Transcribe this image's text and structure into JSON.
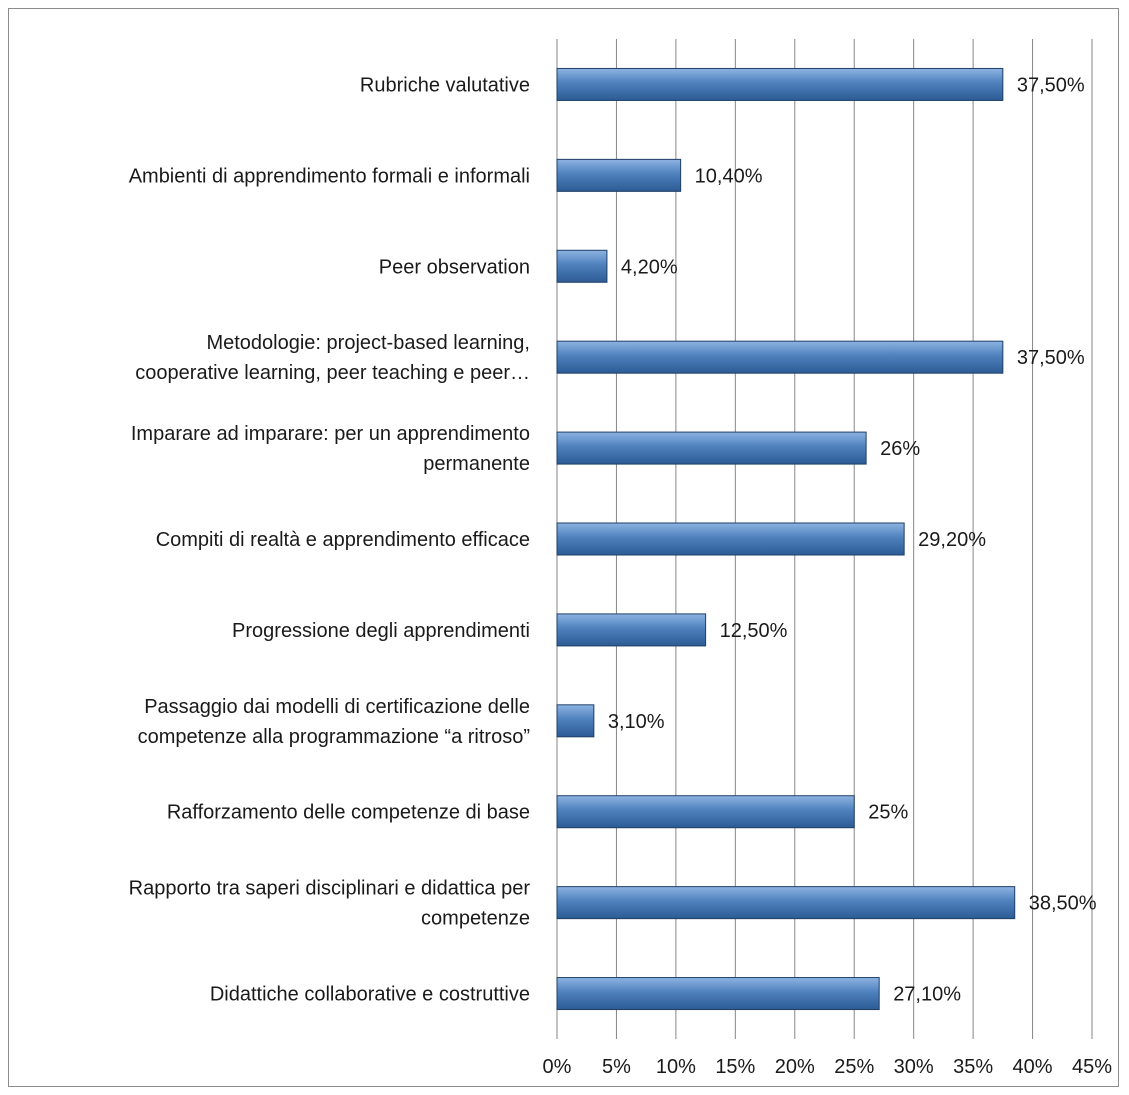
{
  "chart_data": {
    "type": "bar",
    "orientation": "horizontal",
    "categories": [
      "Rubriche valutative",
      "Ambienti di apprendimento formali e informali",
      "Peer observation",
      "Metodologie: project-based learning, cooperative learning, peer teaching e peer…",
      "Imparare ad imparare: per un apprendimento permanente",
      "Compiti di realtà e apprendimento efficace",
      "Progressione degli apprendimenti",
      "Passaggio dai modelli di certificazione delle competenze alla programmazione “a ritroso”",
      "Rafforzamento delle competenze di base",
      "Rapporto tra saperi disciplinari e didattica per competenze",
      "Didattiche collaborative e costruttive"
    ],
    "category_lines": [
      [
        "Rubriche valutative"
      ],
      [
        "Ambienti di apprendimento formali e informali"
      ],
      [
        "Peer observation"
      ],
      [
        "Metodologie: project-based learning,",
        "cooperative learning, peer teaching e peer…"
      ],
      [
        "Imparare ad imparare: per un apprendimento",
        "permanente"
      ],
      [
        "Compiti di realtà e apprendimento efficace"
      ],
      [
        "Progressione degli apprendimenti"
      ],
      [
        "Passaggio dai modelli di certificazione delle",
        "competenze alla programmazione “a ritroso”"
      ],
      [
        "Rafforzamento delle competenze di base"
      ],
      [
        "Rapporto tra saperi disciplinari e didattica per",
        "competenze"
      ],
      [
        "Didattiche collaborative e costruttive"
      ]
    ],
    "values": [
      37.5,
      10.4,
      4.2,
      37.5,
      26,
      29.2,
      12.5,
      3.1,
      25,
      38.5,
      27.1
    ],
    "data_labels": [
      "37,50%",
      "10,40%",
      "4,20%",
      "37,50%",
      "26%",
      "29,20%",
      "12,50%",
      "3,10%",
      "25%",
      "38,50%",
      "27,10%"
    ],
    "x_ticks": [
      0,
      5,
      10,
      15,
      20,
      25,
      30,
      35,
      40,
      45
    ],
    "x_tick_labels": [
      "0%",
      "5%",
      "10%",
      "15%",
      "20%",
      "25%",
      "30%",
      "35%",
      "40%",
      "45%"
    ],
    "xlim": [
      0,
      45
    ],
    "grid": true,
    "legend": "none",
    "title": "",
    "xlabel": "",
    "ylabel": "",
    "colors": {
      "bar_light": "#8db3e2",
      "bar_main": "#4f81bd",
      "bar_dark": "#2c5b94",
      "bar_edge": "#1f3f66",
      "grid": "#868686"
    }
  }
}
